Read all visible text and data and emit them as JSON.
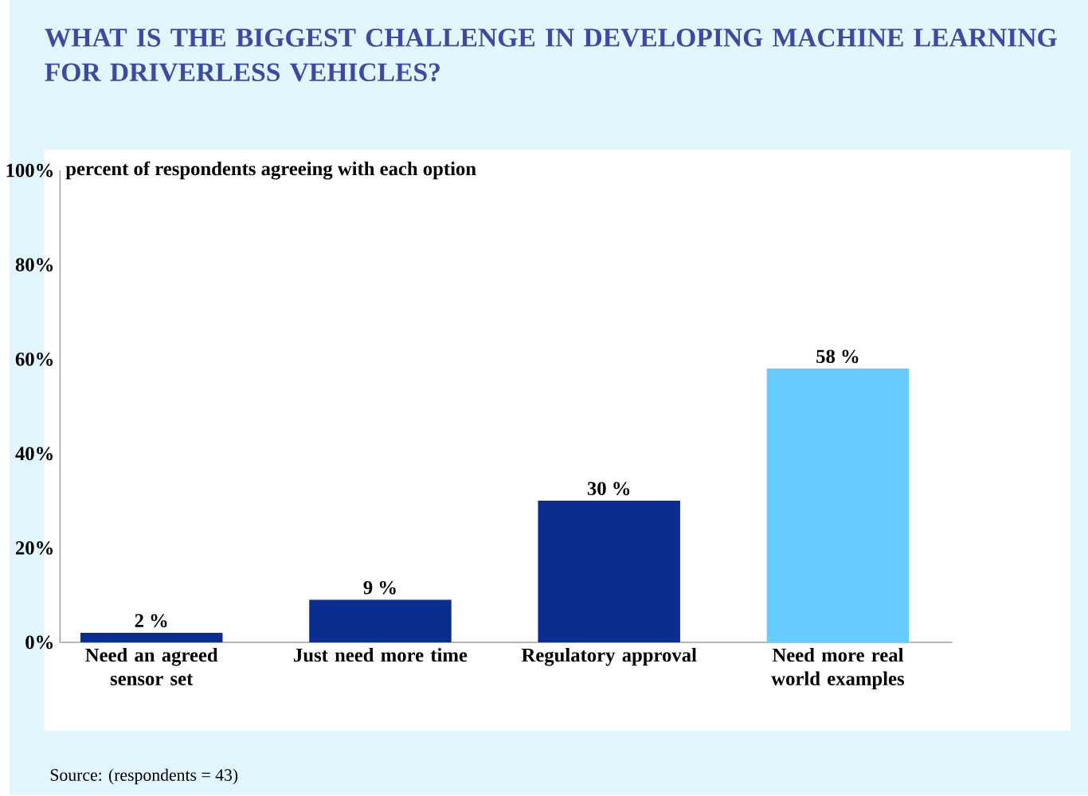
{
  "chart_data": {
    "type": "bar",
    "title": "WHAT IS THE BIGGEST CHALLENGE IN DEVELOPING MACHINE LEARNING FOR DRIVERLESS VEHICLES?",
    "ylabel": "percent of respondents agreeing with each option",
    "categories": [
      "Need an agreed sensor set",
      "Just need more time",
      "Regulatory approval",
      "Need more real world examples"
    ],
    "values": [
      2,
      9,
      30,
      58
    ],
    "value_labels": [
      "2 %",
      "9 %",
      "30 %",
      "58 %"
    ],
    "colors": [
      "#0a2d8f",
      "#0a2d8f",
      "#0a2d8f",
      "#66ccff"
    ],
    "ylim": [
      0,
      100
    ],
    "yticks": [
      {
        "value": 0,
        "label": "0%"
      },
      {
        "value": 20,
        "label": "20%"
      },
      {
        "value": 40,
        "label": "40%"
      },
      {
        "value": 60,
        "label": "60%"
      },
      {
        "value": 80,
        "label": "80%"
      },
      {
        "value": 100,
        "label": "100%"
      }
    ],
    "annotations": [
      "Source: (respondents = 43)"
    ]
  }
}
